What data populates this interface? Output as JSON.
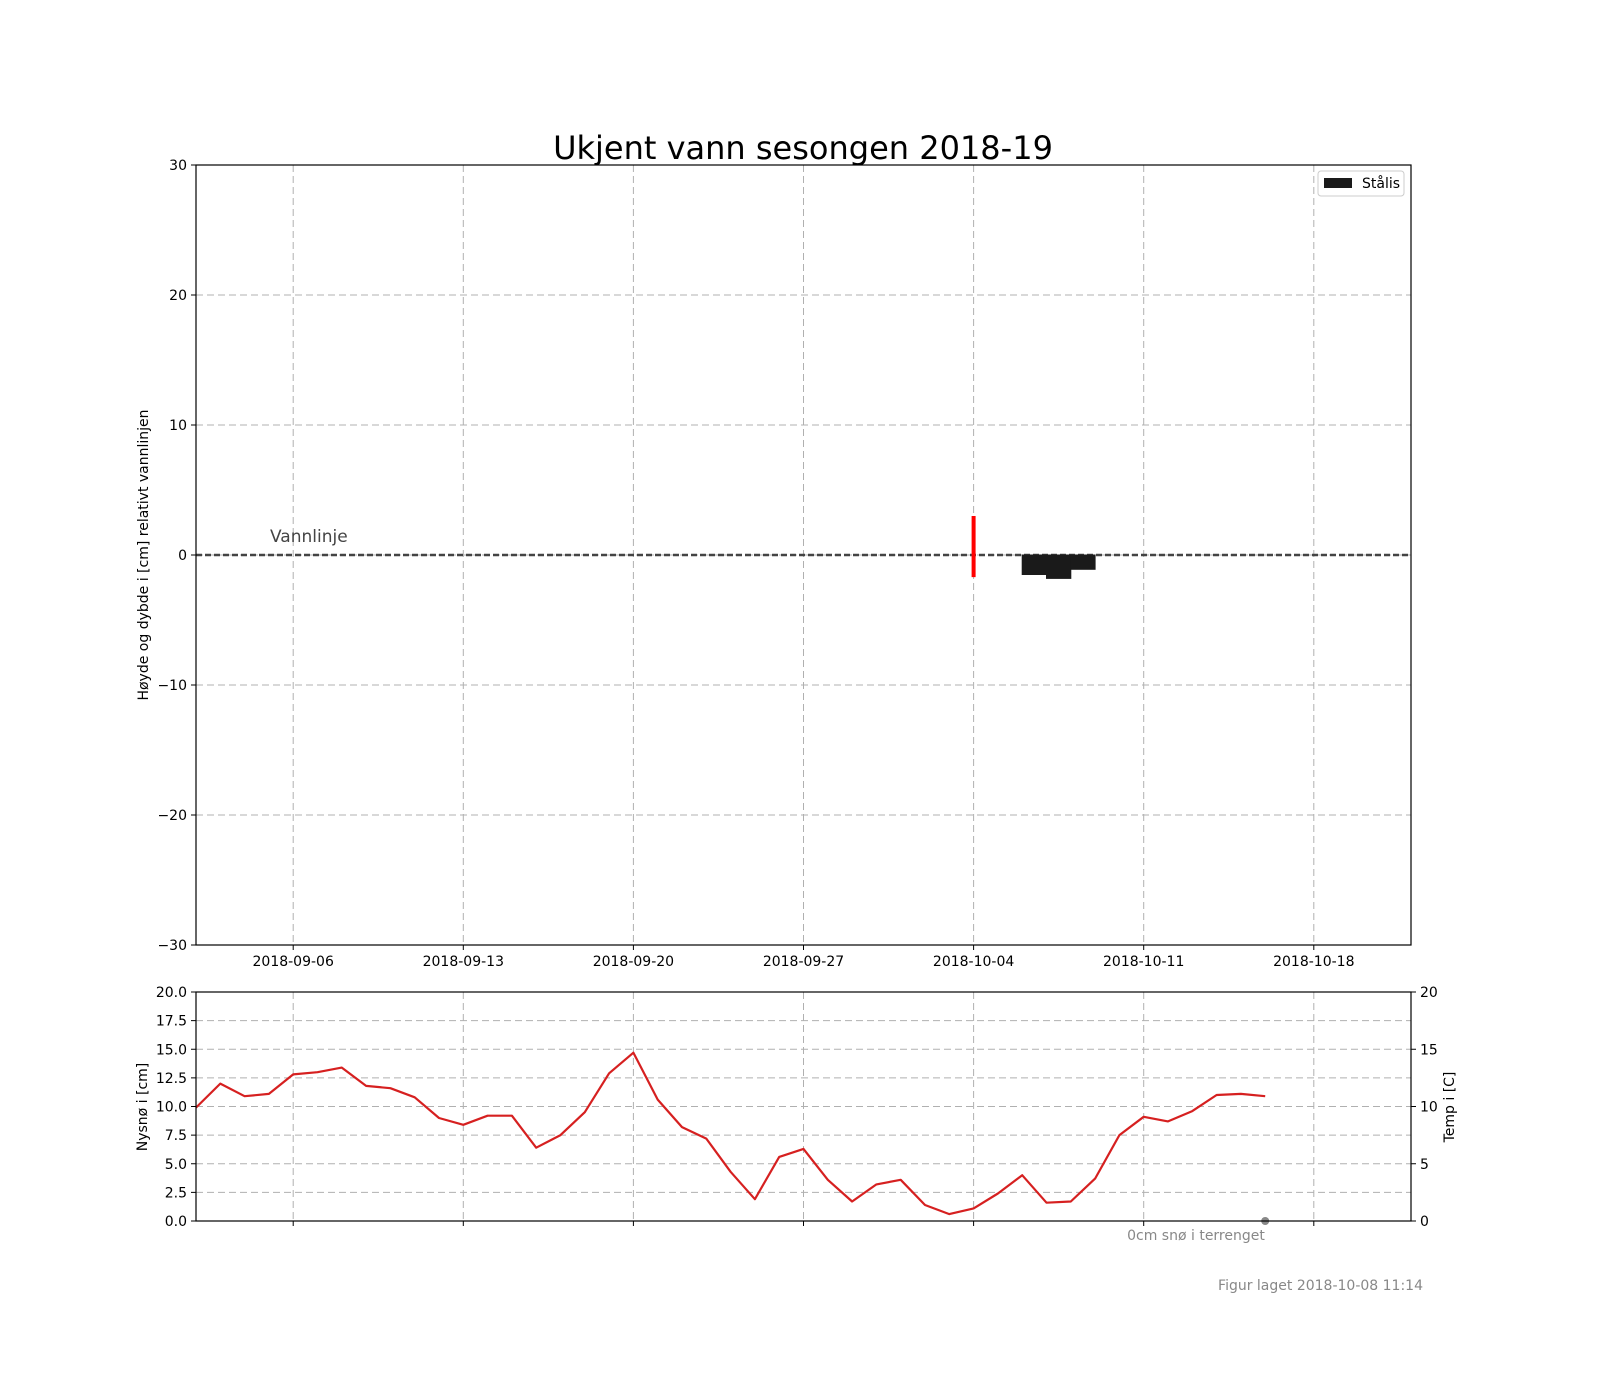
{
  "figure": {
    "title": "Ukjent vann sesongen 2018-19",
    "footer": "Figur laget 2018-10-08 11:14",
    "colors": {
      "ice": "#1a1a1a",
      "temp": "#d62020",
      "snow_marker": "#ff0000",
      "waterline": "#444444",
      "grid": "#b0b0b0"
    }
  },
  "chart_data": [
    {
      "type": "bar",
      "ylabel": "Høyde og dybde i [cm] relativt vannlinjen",
      "ylim": [
        -30,
        30
      ],
      "yticks": [
        30,
        20,
        10,
        0,
        -10,
        -20,
        -30
      ],
      "ytick_labels": [
        "30",
        "20",
        "10",
        "0",
        "−10",
        "−20",
        "−30"
      ],
      "xlim": [
        "2018-09-02",
        "2018-10-22"
      ],
      "xticks": [
        "2018-09-06",
        "2018-09-13",
        "2018-09-20",
        "2018-09-27",
        "2018-10-04",
        "2018-10-11",
        "2018-10-18"
      ],
      "grid": true,
      "legend": {
        "position": "top-right",
        "entries": [
          {
            "label": "Stålis",
            "color": "#1a1a1a"
          }
        ]
      },
      "annotations": [
        {
          "text": "Vannlinje",
          "x": "2018-09-05",
          "y": 1
        }
      ],
      "waterline": 0,
      "snow_marker": {
        "date": "2018-10-04",
        "top": 3,
        "bottom": -1.7
      },
      "ice_bars": [
        {
          "name": "Stålis",
          "from": "2018-10-06",
          "to": "2018-10-07",
          "top": 0,
          "bottom": -1.5
        },
        {
          "name": "Stålis",
          "from": "2018-10-07",
          "to": "2018-10-08",
          "top": 0,
          "bottom": -1.8
        },
        {
          "name": "Stålis",
          "from": "2018-10-08",
          "to": "2018-10-09",
          "top": 0,
          "bottom": -1.1
        }
      ]
    },
    {
      "type": "line",
      "ylabel": "Nysnø i [cm]",
      "ylabel_right": "Temp i [C]",
      "ylim": [
        0,
        20
      ],
      "yticks": [
        0,
        2.5,
        5,
        7.5,
        10,
        12.5,
        15,
        17.5,
        20
      ],
      "ytick_labels": [
        "0.0",
        "2.5",
        "5.0",
        "7.5",
        "10.0",
        "12.5",
        "15.0",
        "17.5",
        "20.0"
      ],
      "yticks_right": [
        0,
        5,
        10,
        15,
        20
      ],
      "ytick_labels_right": [
        "0",
        "5",
        "10",
        "15",
        "20"
      ],
      "xlim": [
        "2018-09-02",
        "2018-10-22"
      ],
      "grid": true,
      "annotation": "0cm snø i terrenget",
      "snow_points": [
        {
          "x": "2018-10-16",
          "y": 0
        }
      ],
      "series": [
        {
          "x": [
            "2018-09-02",
            "2018-09-03",
            "2018-09-04",
            "2018-09-05",
            "2018-09-06",
            "2018-09-07",
            "2018-09-08",
            "2018-09-09",
            "2018-09-10",
            "2018-09-11",
            "2018-09-12",
            "2018-09-13",
            "2018-09-14",
            "2018-09-15",
            "2018-09-16",
            "2018-09-17",
            "2018-09-18",
            "2018-09-19",
            "2018-09-20",
            "2018-09-21",
            "2018-09-22",
            "2018-09-23",
            "2018-09-24",
            "2018-09-25",
            "2018-09-26",
            "2018-09-27",
            "2018-09-28",
            "2018-09-29",
            "2018-09-30",
            "2018-10-01",
            "2018-10-02",
            "2018-10-03",
            "2018-10-04",
            "2018-10-05",
            "2018-10-06",
            "2018-10-07",
            "2018-10-08",
            "2018-10-09",
            "2018-10-10",
            "2018-10-11",
            "2018-10-12",
            "2018-10-13",
            "2018-10-14",
            "2018-10-15",
            "2018-10-16"
          ],
          "values": [
            9.9,
            12.0,
            10.9,
            11.1,
            12.8,
            13.0,
            13.4,
            11.8,
            11.6,
            10.8,
            9.0,
            8.4,
            9.2,
            9.2,
            6.4,
            7.5,
            9.5,
            12.9,
            14.7,
            10.6,
            8.2,
            7.2,
            4.3,
            1.9,
            5.6,
            6.3,
            3.6,
            1.7,
            3.2,
            3.6,
            1.4,
            0.6,
            1.1,
            2.4,
            4.0,
            1.6,
            1.7,
            3.7,
            7.5,
            9.1,
            8.7,
            9.6,
            11.0,
            11.1,
            10.9
          ]
        }
      ]
    }
  ]
}
